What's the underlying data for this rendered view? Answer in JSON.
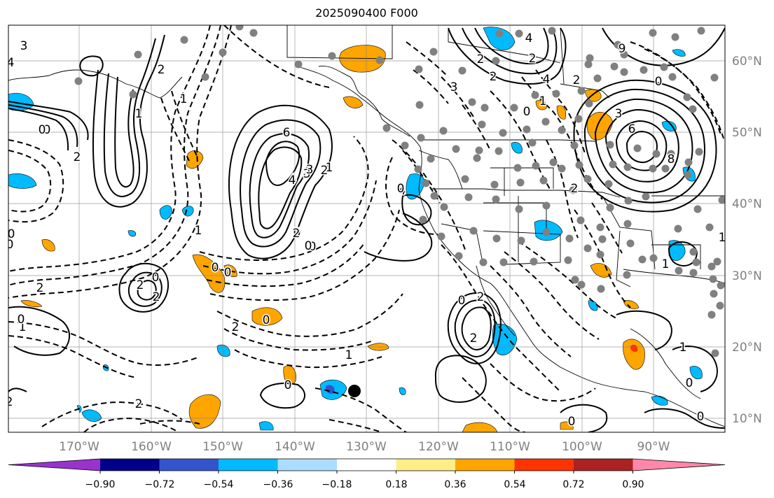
{
  "title": "2025090400 F000",
  "lon_ticks": [
    "170°W",
    "160°W",
    "150°W",
    "140°W",
    "130°W",
    "120°W",
    "110°W",
    "100°W",
    "90°W"
  ],
  "lat_ticks": [
    "60°N",
    "50°N",
    "40°N",
    "30°N",
    "20°N",
    "10°N"
  ],
  "colorbar": {
    "colors": [
      "#9933cc",
      "#000088",
      "#3355cc",
      "#00bbff",
      "#aaddff",
      "#ffffff",
      "#ffee88",
      "#ffa500",
      "#ff3300",
      "#aa2222",
      "#ff88aa"
    ],
    "tick_labels": [
      "−0.90",
      "−0.72",
      "−0.54",
      "−0.36",
      "−0.18",
      "0.18",
      "0.36",
      "0.54",
      "0.72",
      "0.90"
    ]
  },
  "contour_labels": [
    "3",
    "4",
    "2",
    "0",
    "1",
    "2",
    "1",
    "2",
    "6",
    "4",
    "3",
    "2",
    "0",
    "1",
    "2",
    "2",
    "2",
    "0",
    "1",
    "0",
    "2",
    "2",
    "0",
    "0",
    "6",
    "4",
    "3",
    "2",
    "1",
    "0",
    "9",
    "1",
    "0",
    "3",
    "6",
    "8",
    "2",
    "4",
    "4",
    "2",
    "3",
    "4",
    "2",
    "2",
    "0",
    "0",
    "1",
    "1",
    "0",
    "0",
    "1",
    "2",
    "1",
    "0",
    "2",
    "2",
    "0",
    "0",
    "0",
    "0",
    "0",
    "0",
    "0"
  ],
  "marker_colors": {
    "station": "#808080",
    "highlight": "#000000"
  }
}
